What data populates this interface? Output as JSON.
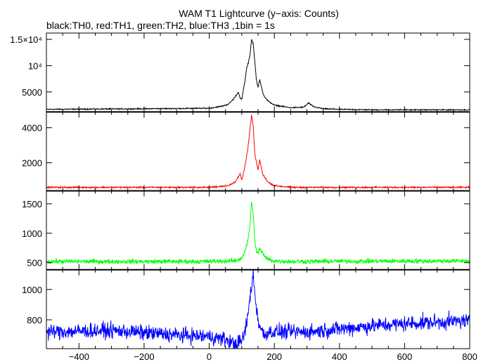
{
  "chart_data": {
    "type": "line",
    "title": "WAM T1 Lightcurve (y−axis: Counts)",
    "subtitle": "black:TH0, red:TH1, green:TH2, blue:TH3 ,1bin = 1s",
    "xlabel": "",
    "xlim": [
      -500,
      800
    ],
    "x_ticks": [
      -400,
      -200,
      0,
      200,
      400,
      600,
      800
    ],
    "x_tick_labels": [
      "−400",
      "−200",
      "0",
      "200",
      "400",
      "600",
      "800"
    ],
    "grid": false,
    "legend": "none",
    "panels": [
      {
        "name": "TH0",
        "color": "#000000",
        "ylim": [
          1200,
          16200
        ],
        "y_ticks": [
          5000,
          10000,
          15000
        ],
        "y_tick_labels": [
          "5000",
          "10⁴",
          "1.5×10⁴"
        ],
        "x": [
          -500,
          -200,
          0,
          40,
          60,
          75,
          90,
          95,
          100,
          110,
          115,
          120,
          125,
          130,
          135,
          140,
          145,
          150,
          155,
          160,
          165,
          170,
          180,
          200,
          250,
          290,
          305,
          320,
          350,
          400,
          500,
          800
        ],
        "values": [
          1700,
          1800,
          1900,
          2300,
          2700,
          3700,
          5000,
          3800,
          3600,
          7200,
          9500,
          10500,
          12000,
          15000,
          14200,
          10800,
          7200,
          5900,
          7300,
          6000,
          4800,
          4100,
          3300,
          2500,
          2000,
          2100,
          2900,
          2200,
          1800,
          1700,
          1600,
          1600
        ],
        "noise": 80
      },
      {
        "name": "TH1",
        "color": "#ff0000",
        "ylim": [
          400,
          4900
        ],
        "y_ticks": [
          2000,
          4000
        ],
        "y_tick_labels": [
          "2000",
          "4000"
        ],
        "x": [
          -500,
          0,
          60,
          80,
          95,
          100,
          110,
          120,
          125,
          130,
          135,
          140,
          145,
          150,
          155,
          160,
          165,
          170,
          180,
          200,
          250,
          800
        ],
        "values": [
          600,
          600,
          700,
          900,
          1400,
          1000,
          1800,
          3000,
          3900,
          4700,
          4100,
          2500,
          2000,
          1600,
          2200,
          1700,
          1300,
          1200,
          900,
          700,
          600,
          600
        ],
        "noise": 35
      },
      {
        "name": "TH2",
        "color": "#00ff00",
        "ylim": [
          380,
          1720
        ],
        "y_ticks": [
          500,
          1000,
          1500
        ],
        "y_tick_labels": [
          "500",
          "1000",
          "1500"
        ],
        "x": [
          -500,
          0,
          80,
          100,
          110,
          120,
          125,
          130,
          135,
          140,
          145,
          150,
          155,
          160,
          170,
          180,
          200,
          250,
          800
        ],
        "values": [
          520,
          520,
          530,
          580,
          700,
          900,
          1150,
          1550,
          1300,
          900,
          680,
          650,
          750,
          700,
          600,
          560,
          530,
          520,
          530
        ],
        "noise": 30
      },
      {
        "name": "TH3",
        "color": "#0000ff",
        "ylim": [
          610,
          1130
        ],
        "y_ticks": [
          800,
          1000
        ],
        "y_tick_labels": [
          "800",
          "1000"
        ],
        "x": [
          -500,
          -300,
          -100,
          0,
          50,
          80,
          100,
          110,
          120,
          130,
          135,
          140,
          150,
          160,
          170,
          180,
          200,
          300,
          400,
          500,
          600,
          700,
          800
        ],
        "values": [
          720,
          730,
          700,
          690,
          670,
          640,
          660,
          720,
          850,
          1030,
          1100,
          970,
          800,
          730,
          700,
          720,
          720,
          720,
          740,
          760,
          775,
          785,
          795
        ],
        "noise": 38
      }
    ]
  }
}
